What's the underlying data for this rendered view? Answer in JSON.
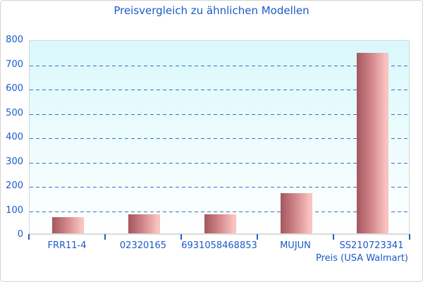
{
  "chart_data": {
    "type": "bar",
    "title": "Preisvergleich zu ähnlichen Modellen",
    "categories": [
      "FRR11-4",
      "02320165",
      "6931058468853",
      "MUJUN",
      "SS210723341"
    ],
    "values": [
      70,
      82,
      82,
      168,
      744
    ],
    "xlabel": "Preis (USA Walmart)",
    "ylabel": "",
    "ylim": [
      0,
      800
    ],
    "ytick_step": 100,
    "grid": "horizontal-dashed",
    "legend_position": "none",
    "colors": {
      "text_blue": "#1b5ac9",
      "grid_blue": "#3c6cc8",
      "tick_blue": "#1e62c8",
      "bar_dark": "#a4565e",
      "bar_mid": "#cf8589",
      "bar_light": "#fac2c0",
      "plot_bg_top": "#d9f8fb",
      "plot_bg_bottom": "#feffff",
      "axis_line_gray": "#dcdcdc",
      "plot_border": "#ccd9de",
      "outer_border": "#d3d3d3"
    }
  }
}
